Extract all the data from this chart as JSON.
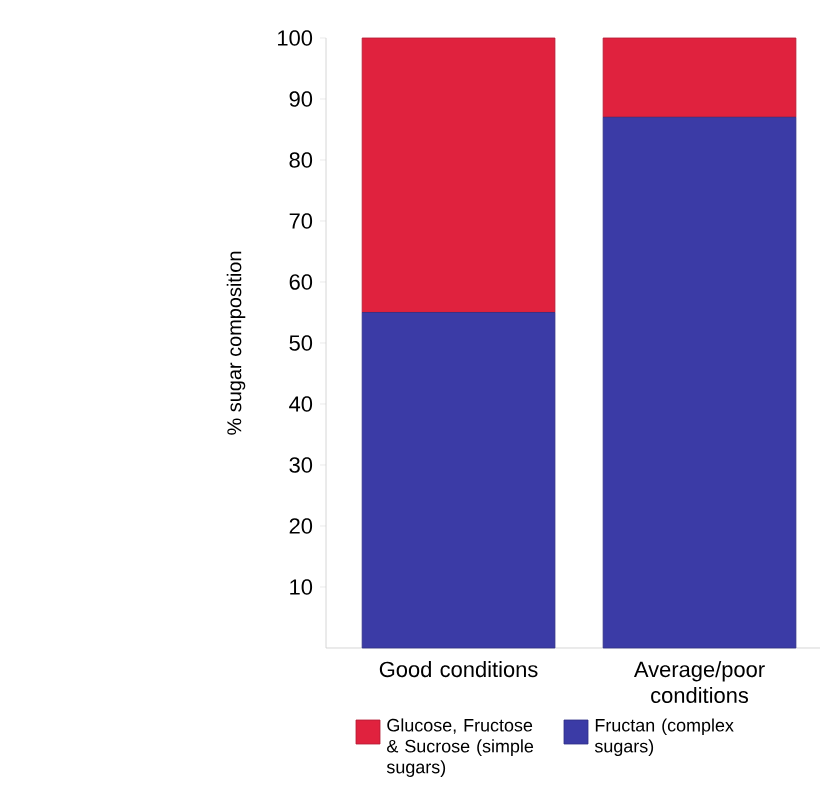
{
  "chart_data": {
    "type": "bar",
    "stacked": true,
    "ylabel": "% sugar composition",
    "categories": [
      "Good conditions",
      "Average/poor conditions"
    ],
    "series": [
      {
        "name": "Fructan (complex sugars)",
        "color": "#3b3ba6",
        "values": [
          55,
          87
        ]
      },
      {
        "name": "Glucose, Fructose & Sucrose (simple sugars)",
        "color": "#e0223e",
        "values": [
          45,
          13
        ]
      }
    ],
    "ylim": [
      0,
      100
    ],
    "yticks": [
      10,
      20,
      30,
      40,
      50,
      60,
      70,
      80,
      90,
      100
    ],
    "legend": "bottom",
    "grid": false
  }
}
